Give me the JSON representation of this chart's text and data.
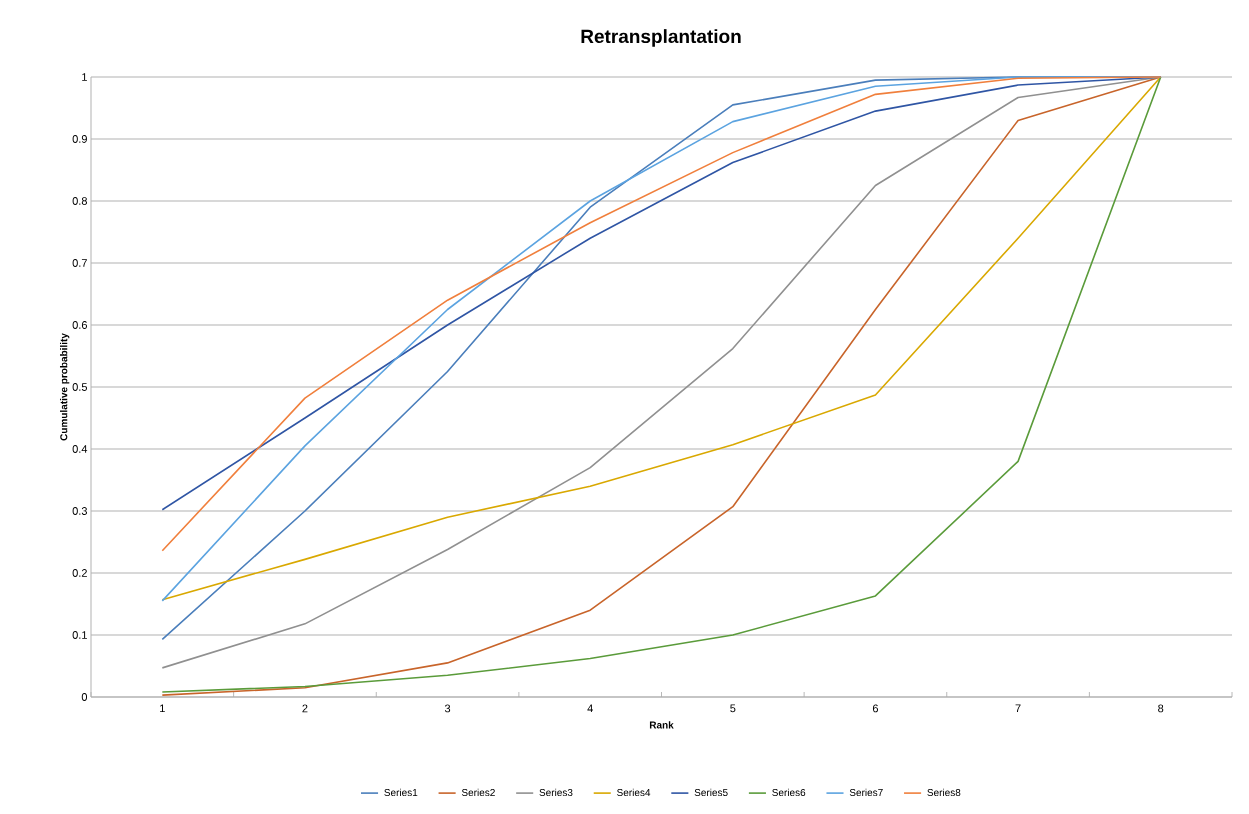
{
  "chart_data": {
    "type": "line",
    "title": "Retransplantation",
    "xlabel": "Rank",
    "ylabel": "Cumulative probability",
    "categories": [
      "1",
      "2",
      "3",
      "4",
      "5",
      "6",
      "7",
      "8"
    ],
    "series": [
      {
        "name": "Series1",
        "color": "#4a7ebb",
        "values": [
          0.093,
          0.3,
          0.525,
          0.79,
          0.955,
          0.995,
          1.0,
          1.0
        ]
      },
      {
        "name": "Series2",
        "color": "#c8642a",
        "values": [
          0.003,
          0.015,
          0.055,
          0.14,
          0.307,
          0.625,
          0.93,
          1.0
        ]
      },
      {
        "name": "Series3",
        "color": "#909090",
        "values": [
          0.047,
          0.118,
          0.238,
          0.37,
          0.562,
          0.825,
          0.967,
          1.0
        ]
      },
      {
        "name": "Series4",
        "color": "#d9a800",
        "values": [
          0.157,
          0.222,
          0.29,
          0.34,
          0.407,
          0.487,
          0.74,
          1.0
        ]
      },
      {
        "name": "Series5",
        "color": "#2f55a4",
        "values": [
          0.302,
          0.45,
          0.6,
          0.74,
          0.862,
          0.945,
          0.987,
          1.0
        ]
      },
      {
        "name": "Series6",
        "color": "#5a9b3a",
        "values": [
          0.008,
          0.017,
          0.035,
          0.062,
          0.1,
          0.163,
          0.38,
          1.0
        ]
      },
      {
        "name": "Series7",
        "color": "#5ba3e0",
        "values": [
          0.155,
          0.405,
          0.625,
          0.8,
          0.928,
          0.985,
          1.0,
          1.0
        ]
      },
      {
        "name": "Series8",
        "color": "#f07f3c",
        "values": [
          0.236,
          0.482,
          0.64,
          0.765,
          0.878,
          0.972,
          0.998,
          1.0
        ]
      }
    ],
    "ylim": [
      0,
      1
    ],
    "yticks": [
      0,
      0.1,
      0.2,
      0.3,
      0.4,
      0.5,
      0.6,
      0.7,
      0.8,
      0.9,
      1
    ],
    "grid": "y",
    "legend": "bottom",
    "marker": "none",
    "line_style": "solid"
  }
}
